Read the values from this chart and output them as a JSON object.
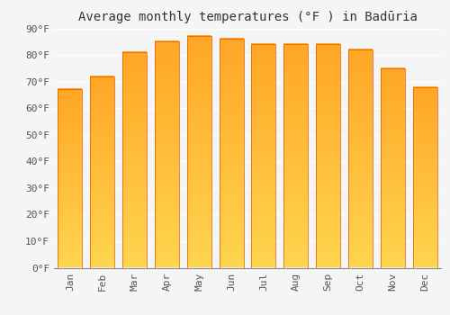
{
  "months": [
    "Jan",
    "Feb",
    "Mar",
    "Apr",
    "May",
    "Jun",
    "Jul",
    "Aug",
    "Sep",
    "Oct",
    "Nov",
    "Dec"
  ],
  "values": [
    67,
    72,
    81,
    85,
    87,
    86,
    84,
    84,
    84,
    82,
    75,
    68
  ],
  "bar_color_main": "#FFA726",
  "bar_color_light": "#FFD54F",
  "bar_color_edge": "#E65100",
  "title": "Average monthly temperatures (°F ) in Badūria",
  "ylim": [
    0,
    90
  ],
  "ytick_step": 10,
  "background_color": "#f5f5f5",
  "grid_color": "#ffffff",
  "title_fontsize": 10,
  "tick_fontsize": 8,
  "font_family": "monospace"
}
